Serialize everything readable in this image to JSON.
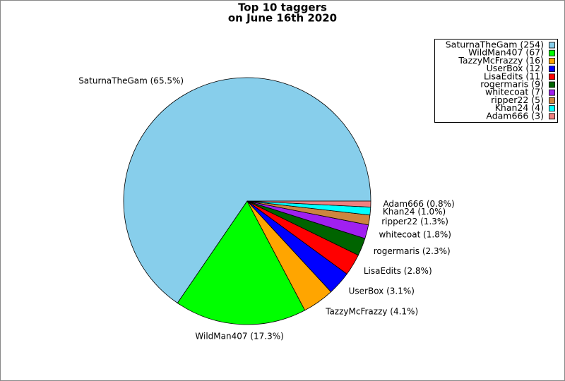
{
  "chart_data": {
    "type": "pie",
    "title": [
      "Top 10 taggers",
      "on June 16th 2020"
    ],
    "series": [
      {
        "values": [
          254,
          67,
          16,
          12,
          11,
          9,
          7,
          5,
          4,
          3
        ],
        "colors": [
          "#87ceeb",
          "#00ff00",
          "#ffa500",
          "#0000ff",
          "#ff0000",
          "#006400",
          "#a020f0",
          "#cd853f",
          "#00ffff",
          "#f08080"
        ],
        "labels": [
          "SaturnaTheGam (254)",
          "WildMan407 (67)",
          "TazzyMcFrazzy (16)",
          "UserBox (12)",
          "LisaEdits (11)",
          "rogermaris (9)",
          "whitecoat (7)",
          "ripper22 (5)",
          "Khan24 (4)",
          "Adam666 (3)"
        ],
        "value_labels": [
          "SaturnaTheGam (65.5%)",
          "WildMan407 (17.3%)",
          "TazzyMcFrazzy (4.1%)",
          "UserBox (3.1%)",
          "LisaEdits (2.8%)",
          "rogermaris (2.3%)",
          "whitecoat (1.8%)",
          "ripper22 (1.3%)",
          "Khan24 (1.0%)",
          "Adam666 (0.8%)"
        ]
      }
    ],
    "legend": "upper right"
  }
}
